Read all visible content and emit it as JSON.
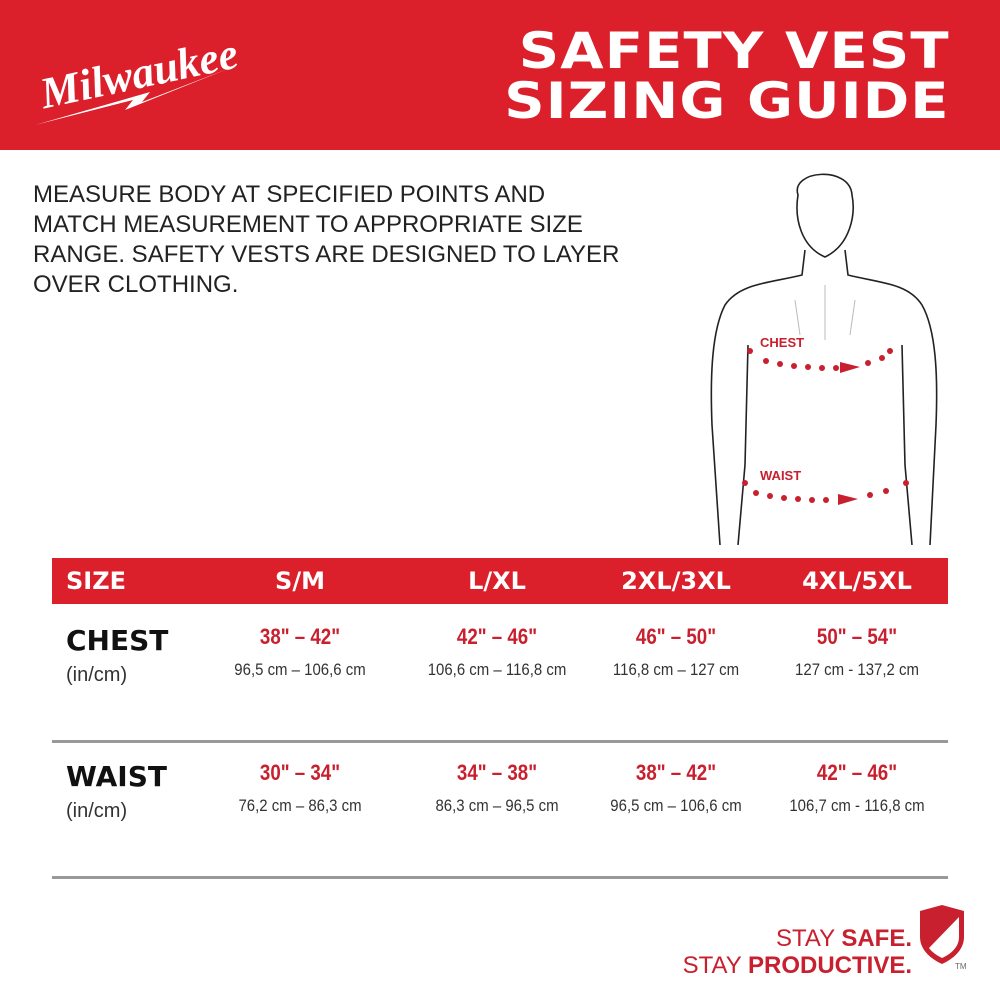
{
  "brand": {
    "logo_text": "Milwaukee",
    "color": "#db1f2b"
  },
  "header": {
    "title_line1": "SAFETY VEST",
    "title_line2": "SIZING GUIDE"
  },
  "intro": "MEASURE BODY AT SPECIFIED POINTS AND MATCH MEASUREMENT TO APPROPRIATE SIZE RANGE. SAFETY VESTS ARE DESIGNED TO LAYER OVER CLOTHING.",
  "figure": {
    "chest_label": "CHEST",
    "waist_label": "WAIST"
  },
  "table": {
    "headers": [
      "SIZE",
      "S/M",
      "L/XL",
      "2XL/3XL",
      "4XL/5XL"
    ],
    "rows": [
      {
        "label": "CHEST",
        "unit": "(in/cm)",
        "inches": [
          "38\" – 42\"",
          "42\" – 46\"",
          "46\" – 50\"",
          "50\" – 54\""
        ],
        "cm": [
          "96,5 cm – 106,6 cm",
          "106,6 cm – 116,8 cm",
          "116,8 cm – 127 cm",
          "127 cm - 137,2 cm"
        ]
      },
      {
        "label": "WAIST",
        "unit": "(in/cm)",
        "inches": [
          "30\" – 34\"",
          "34\" – 38\"",
          "38\" – 42\"",
          "42\" – 46\""
        ],
        "cm": [
          "76,2 cm – 86,3 cm",
          "86,3 cm – 96,5 cm",
          "96,5 cm – 106,6 cm",
          "106,7 cm - 116,8 cm"
        ]
      }
    ]
  },
  "tagline": {
    "stay1": "STAY ",
    "safe": "SAFE.",
    "stay2": "STAY ",
    "productive": "PRODUCTIVE.",
    "tm": "TM"
  }
}
